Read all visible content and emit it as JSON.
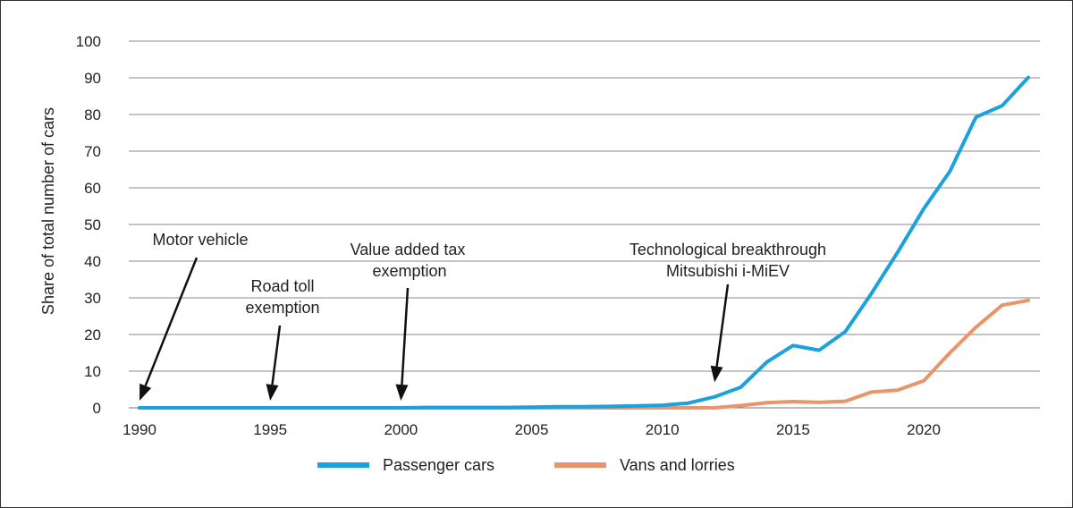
{
  "chart_data": {
    "type": "line",
    "title": "",
    "xlabel": "",
    "ylabel": "Share of total number of cars",
    "xlim": [
      1990,
      2024
    ],
    "ylim": [
      0,
      100
    ],
    "x_ticks": [
      1990,
      1995,
      2000,
      2005,
      2010,
      2015,
      2020
    ],
    "y_ticks": [
      0,
      10,
      20,
      30,
      40,
      50,
      60,
      70,
      80,
      90,
      100
    ],
    "grid": true,
    "legend_position": "bottom-center",
    "x": [
      1990,
      1991,
      1992,
      1993,
      1994,
      1995,
      1996,
      1997,
      1998,
      1999,
      2000,
      2001,
      2002,
      2003,
      2004,
      2005,
      2006,
      2007,
      2008,
      2009,
      2010,
      2011,
      2012,
      2013,
      2014,
      2015,
      2016,
      2017,
      2018,
      2019,
      2020,
      2021,
      2022,
      2023,
      2024
    ],
    "series": [
      {
        "name": "Passenger cars",
        "color": "#1ba1dd",
        "values": [
          0,
          0,
          0,
          0,
          0,
          0,
          0,
          0,
          0,
          0,
          0,
          0.1,
          0.1,
          0.1,
          0.1,
          0.2,
          0.3,
          0.3,
          0.4,
          0.5,
          0.7,
          1.3,
          3,
          5.6,
          12.5,
          17,
          15.7,
          20.8,
          31.2,
          42.4,
          54.3,
          64.5,
          79.3,
          82.4,
          90.1
        ]
      },
      {
        "name": "Vans and lorries",
        "color": "#e9956a",
        "values": [
          0,
          0,
          0,
          0,
          0,
          0,
          0,
          0,
          0,
          0,
          0,
          0,
          0,
          0,
          0,
          0,
          0,
          0,
          0,
          0,
          0,
          0,
          0,
          0.6,
          1.4,
          1.7,
          1.5,
          1.8,
          4.3,
          4.8,
          7.4,
          15,
          22,
          28,
          29.3
        ]
      }
    ],
    "annotations": [
      {
        "id": "motor-vehicle",
        "lines": [
          "Motor vehicle"
        ],
        "target_year": 1990,
        "target_value": 0
      },
      {
        "id": "road-toll",
        "lines": [
          "Road toll",
          "exemption"
        ],
        "target_year": 1995,
        "target_value": 0
      },
      {
        "id": "vat",
        "lines": [
          "Value added tax",
          "exemption"
        ],
        "target_year": 2000,
        "target_value": 0
      },
      {
        "id": "tech",
        "lines": [
          "Technological breakthrough",
          "Mitsubishi i-MiEV"
        ],
        "target_year": 2012,
        "target_value": 5
      }
    ]
  }
}
